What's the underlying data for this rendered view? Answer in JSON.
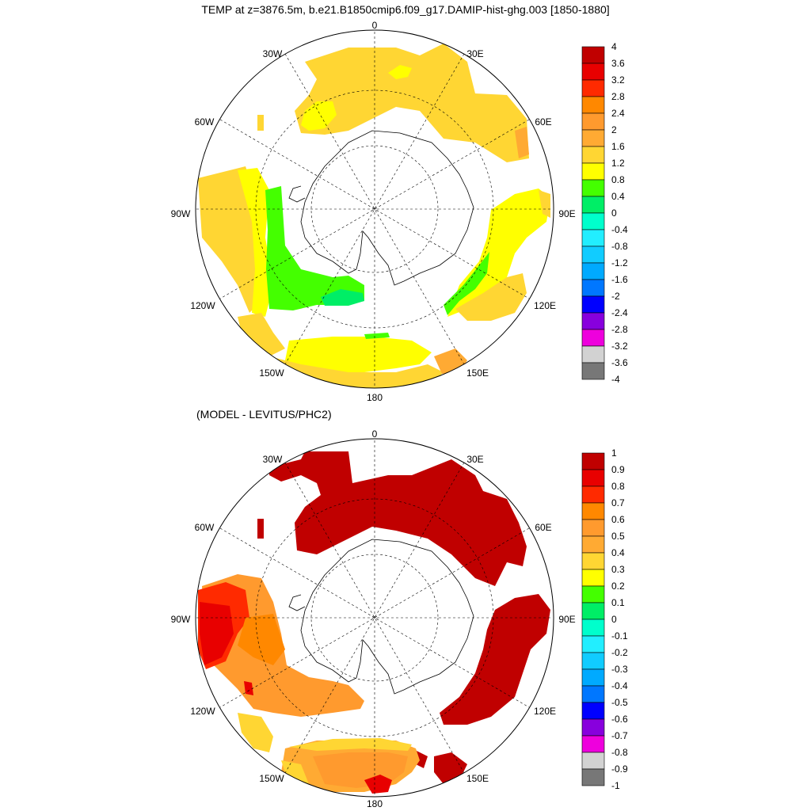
{
  "title": "TEMP at z=3876.5m, b.e21.B1850cmip6.f09_g17.DAMIP-hist-ghg.003 [1850-1880]",
  "subtitle": "(MODEL - LEVITUS/PHC2)",
  "longitude_labels": [
    "0",
    "30E",
    "60E",
    "90E",
    "120E",
    "150E",
    "180",
    "150W",
    "120W",
    "90W",
    "60W",
    "30W"
  ],
  "top_colorbar": {
    "labels": [
      "4",
      "3.6",
      "3.2",
      "2.8",
      "2.4",
      "2",
      "1.6",
      "1.2",
      "0.8",
      "0.4",
      "0",
      "-0.4",
      "-0.8",
      "-1.2",
      "-1.6",
      "-2",
      "-2.4",
      "-2.8",
      "-3.2",
      "-3.6",
      "-4"
    ],
    "colors": [
      "#c00000",
      "#e80000",
      "#ff2a00",
      "#ff8800",
      "#ff9a2e",
      "#ffaa33",
      "#ffd633",
      "#ffff00",
      "#44ff00",
      "#00ee66",
      "#00ffcc",
      "#22eeff",
      "#11ccff",
      "#00aaff",
      "#0077ff",
      "#0000ff",
      "#8800dd",
      "#ee00dd",
      "#d2d2d2",
      "#777777"
    ]
  },
  "bottom_colorbar": {
    "labels": [
      "1",
      "0.9",
      "0.8",
      "0.7",
      "0.6",
      "0.5",
      "0.4",
      "0.3",
      "0.2",
      "0.1",
      "0",
      "-0.1",
      "-0.2",
      "-0.3",
      "-0.4",
      "-0.5",
      "-0.6",
      "-0.7",
      "-0.8",
      "-0.9",
      "-1"
    ],
    "colors": [
      "#c00000",
      "#e80000",
      "#ff2a00",
      "#ff8800",
      "#ff9a2e",
      "#ffaa33",
      "#ffd633",
      "#ffff00",
      "#44ff00",
      "#00ee66",
      "#00ffcc",
      "#22eeff",
      "#11ccff",
      "#00aaff",
      "#0077ff",
      "#0000ff",
      "#8800dd",
      "#ee00dd",
      "#d2d2d2",
      "#777777"
    ]
  },
  "map_colors": {
    "ocean_missing": "#ffffff",
    "orange_light": "#ffd633",
    "yellow": "#ffff00",
    "green": "#44ff00",
    "green_dark": "#00ee66",
    "orange": "#ffaa33",
    "orange_deep": "#ff9a2e",
    "red_dark": "#c00000",
    "red": "#e80000",
    "red_orange": "#ff2a00"
  }
}
